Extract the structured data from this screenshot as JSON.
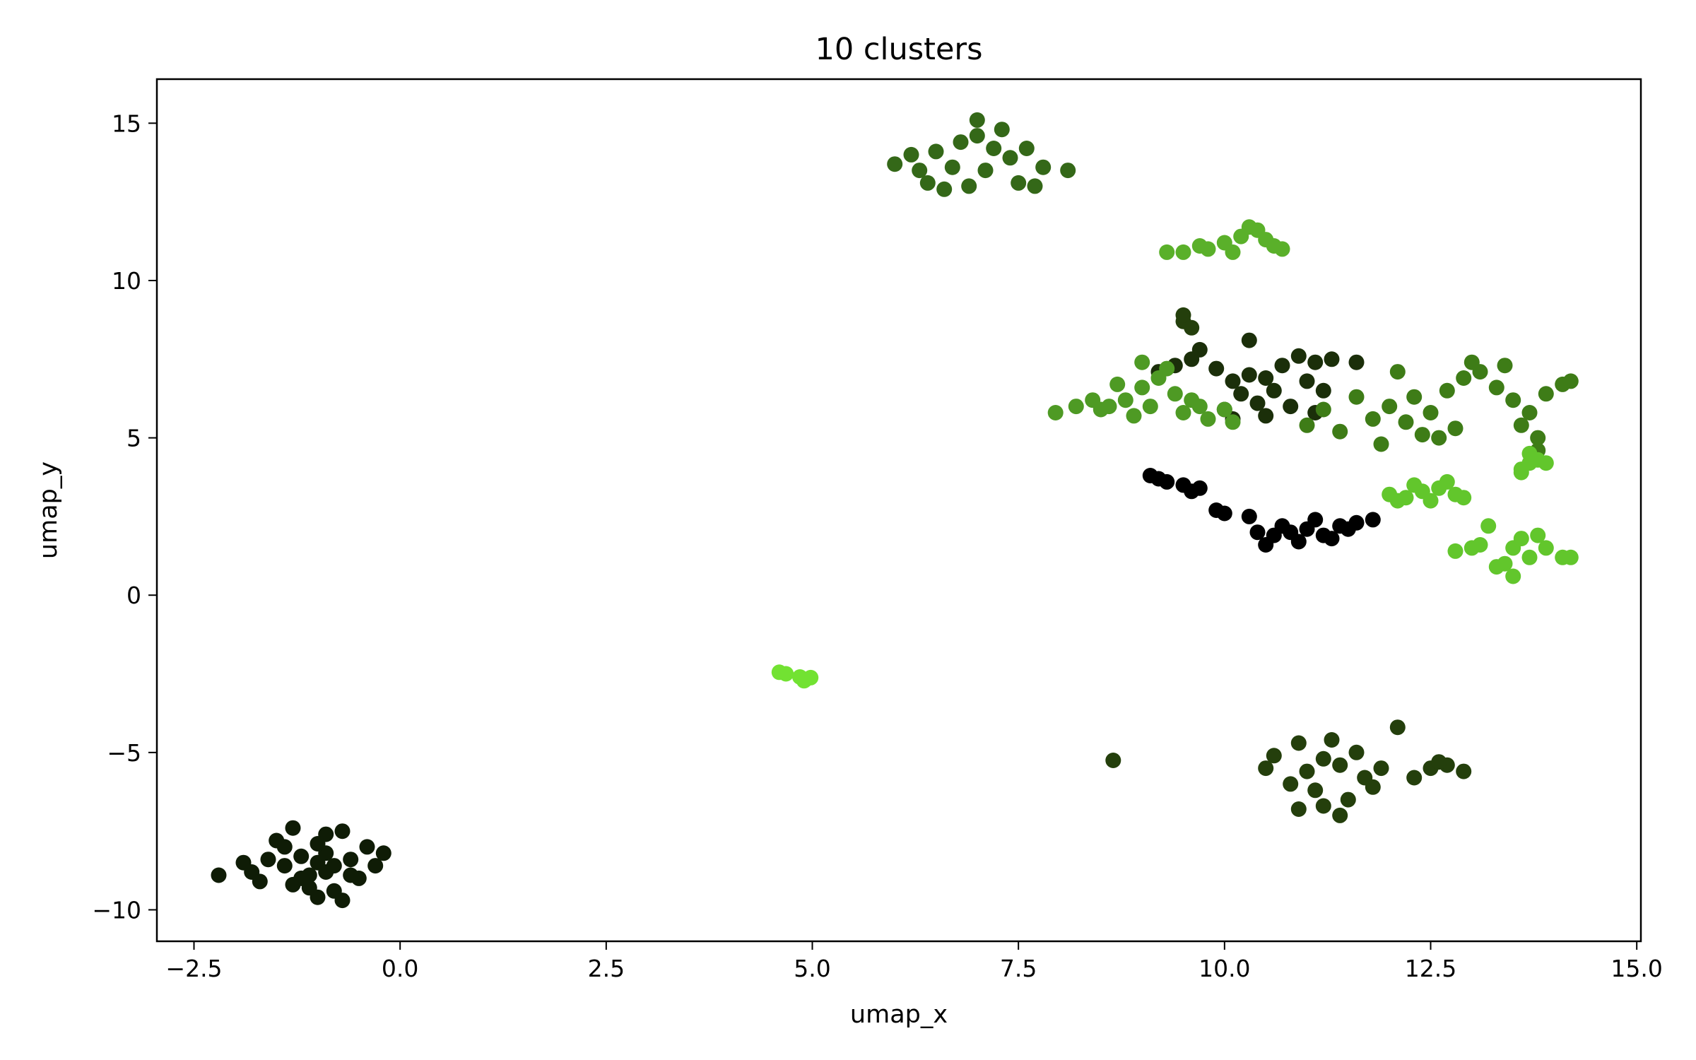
{
  "chart_data": {
    "type": "scatter",
    "title": "10 clusters",
    "xlabel": "umap_x",
    "ylabel": "umap_y",
    "xlim": [
      -2.95,
      15.05
    ],
    "ylim": [
      -11.0,
      16.4
    ],
    "xticks": [
      -2.5,
      0.0,
      2.5,
      5.0,
      7.5,
      10.0,
      12.5,
      15.0
    ],
    "xtick_labels": [
      "−2.5",
      "0.0",
      "2.5",
      "5.0",
      "7.5",
      "10.0",
      "12.5",
      "15.0"
    ],
    "yticks": [
      -10,
      -5,
      0,
      5,
      10,
      15
    ],
    "ytick_labels": [
      "−10",
      "−5",
      "0",
      "5",
      "10",
      "15"
    ],
    "grid": false,
    "legend": "none",
    "series": [
      {
        "color": "#0f1c06",
        "points": [
          [
            -1.0,
            -8.5
          ],
          [
            -1.2,
            -8.3
          ],
          [
            -0.8,
            -8.6
          ],
          [
            -1.1,
            -8.9
          ],
          [
            -0.9,
            -8.2
          ],
          [
            -1.4,
            -8.6
          ],
          [
            -0.6,
            -8.4
          ],
          [
            -1.6,
            -8.4
          ],
          [
            -0.4,
            -8.0
          ],
          [
            -2.2,
            -8.9
          ],
          [
            -1.8,
            -8.8
          ],
          [
            -1.3,
            -7.4
          ],
          [
            -0.9,
            -7.6
          ],
          [
            -0.7,
            -7.5
          ],
          [
            -0.2,
            -8.2
          ],
          [
            -1.0,
            -9.6
          ],
          [
            -0.8,
            -9.4
          ],
          [
            -1.3,
            -9.2
          ],
          [
            -0.7,
            -9.7
          ],
          [
            -1.5,
            -7.8
          ],
          [
            -0.5,
            -9.0
          ],
          [
            -1.1,
            -9.3
          ],
          [
            -0.3,
            -8.6
          ],
          [
            -1.9,
            -8.5
          ],
          [
            -1.0,
            -7.9
          ],
          [
            -1.2,
            -9.0
          ],
          [
            -0.6,
            -8.9
          ],
          [
            -1.7,
            -9.1
          ],
          [
            -0.9,
            -8.8
          ],
          [
            -1.4,
            -8.0
          ]
        ]
      },
      {
        "color": "#000000",
        "points": [
          [
            9.1,
            3.8
          ],
          [
            9.3,
            3.6
          ],
          [
            9.5,
            3.5
          ],
          [
            9.7,
            3.4
          ],
          [
            9.2,
            3.7
          ],
          [
            9.6,
            3.3
          ],
          [
            9.9,
            2.7
          ],
          [
            10.0,
            2.6
          ],
          [
            10.6,
            1.9
          ],
          [
            10.8,
            2.0
          ],
          [
            11.0,
            2.1
          ],
          [
            11.2,
            1.9
          ],
          [
            10.9,
            1.7
          ],
          [
            10.4,
            2.0
          ],
          [
            11.4,
            2.2
          ],
          [
            11.6,
            2.3
          ],
          [
            11.8,
            2.4
          ],
          [
            11.3,
            1.8
          ],
          [
            10.7,
            2.2
          ],
          [
            10.5,
            1.6
          ],
          [
            11.1,
            2.4
          ],
          [
            10.3,
            2.5
          ],
          [
            11.5,
            2.1
          ]
        ]
      },
      {
        "color": "#1b2f0a",
        "points": [
          [
            10.1,
            6.8
          ],
          [
            10.3,
            7.0
          ],
          [
            9.9,
            7.2
          ],
          [
            10.5,
            6.9
          ],
          [
            10.7,
            7.3
          ],
          [
            10.2,
            6.4
          ],
          [
            10.4,
            6.1
          ],
          [
            10.0,
            5.9
          ],
          [
            9.6,
            7.5
          ],
          [
            9.4,
            7.3
          ],
          [
            9.2,
            7.1
          ],
          [
            10.9,
            7.6
          ],
          [
            11.1,
            7.4
          ],
          [
            11.3,
            7.5
          ],
          [
            11.6,
            7.4
          ],
          [
            10.6,
            6.5
          ],
          [
            10.8,
            6.0
          ],
          [
            11.0,
            6.8
          ],
          [
            10.3,
            8.1
          ],
          [
            9.7,
            7.8
          ],
          [
            11.2,
            6.5
          ],
          [
            10.5,
            5.7
          ],
          [
            10.1,
            5.6
          ],
          [
            11.1,
            5.8
          ]
        ]
      },
      {
        "color": "#243f0c",
        "points": [
          [
            9.5,
            8.7
          ],
          [
            9.6,
            8.5
          ],
          [
            9.5,
            8.9
          ],
          [
            11.2,
            -5.2
          ],
          [
            11.4,
            -5.4
          ],
          [
            11.0,
            -5.6
          ],
          [
            11.6,
            -5.0
          ],
          [
            11.3,
            -4.6
          ],
          [
            11.1,
            -6.2
          ],
          [
            11.5,
            -6.5
          ],
          [
            10.8,
            -6.0
          ],
          [
            11.7,
            -5.8
          ],
          [
            11.9,
            -5.5
          ],
          [
            12.1,
            -4.2
          ],
          [
            10.6,
            -5.1
          ],
          [
            10.5,
            -5.5
          ],
          [
            10.9,
            -6.8
          ],
          [
            11.4,
            -7.0
          ],
          [
            11.2,
            -6.7
          ],
          [
            12.3,
            -5.8
          ],
          [
            12.5,
            -5.5
          ],
          [
            12.7,
            -5.4
          ],
          [
            12.9,
            -5.6
          ],
          [
            12.6,
            -5.3
          ],
          [
            8.65,
            -5.25
          ],
          [
            11.8,
            -6.1
          ],
          [
            10.9,
            -4.7
          ]
        ]
      },
      {
        "color": "#346818",
        "points": [
          [
            6.5,
            14.1
          ],
          [
            6.8,
            14.4
          ],
          [
            7.0,
            14.6
          ],
          [
            7.2,
            14.2
          ],
          [
            6.7,
            13.6
          ],
          [
            7.1,
            13.5
          ],
          [
            7.4,
            13.9
          ],
          [
            6.3,
            13.5
          ],
          [
            6.0,
            13.7
          ],
          [
            7.6,
            14.2
          ],
          [
            7.8,
            13.6
          ],
          [
            8.1,
            13.5
          ],
          [
            7.5,
            13.1
          ],
          [
            6.9,
            13.0
          ],
          [
            6.6,
            12.9
          ],
          [
            7.0,
            15.1
          ],
          [
            7.3,
            14.8
          ],
          [
            6.4,
            13.1
          ],
          [
            7.7,
            13.0
          ],
          [
            6.2,
            14.0
          ]
        ]
      },
      {
        "color": "#3e7c17",
        "points": [
          [
            12.0,
            6.0
          ],
          [
            12.3,
            6.3
          ],
          [
            12.5,
            5.8
          ],
          [
            12.7,
            6.5
          ],
          [
            12.2,
            5.5
          ],
          [
            11.8,
            5.6
          ],
          [
            12.9,
            6.9
          ],
          [
            13.1,
            7.1
          ],
          [
            13.3,
            6.6
          ],
          [
            13.5,
            6.2
          ],
          [
            13.7,
            5.8
          ],
          [
            13.9,
            6.4
          ],
          [
            14.1,
            6.7
          ],
          [
            14.2,
            6.8
          ],
          [
            12.4,
            5.1
          ],
          [
            12.6,
            5.0
          ],
          [
            11.4,
            5.2
          ],
          [
            11.2,
            5.9
          ],
          [
            11.0,
            5.4
          ],
          [
            11.6,
            6.3
          ],
          [
            12.1,
            7.1
          ],
          [
            13.0,
            7.4
          ],
          [
            13.6,
            5.4
          ],
          [
            13.8,
            5.0
          ],
          [
            13.8,
            4.6
          ],
          [
            12.8,
            5.3
          ],
          [
            11.9,
            4.8
          ],
          [
            13.4,
            7.3
          ]
        ]
      },
      {
        "color": "#4e9a24",
        "points": [
          [
            9.0,
            6.6
          ],
          [
            9.2,
            6.9
          ],
          [
            8.8,
            6.2
          ],
          [
            9.4,
            6.4
          ],
          [
            9.1,
            6.0
          ],
          [
            8.6,
            6.0
          ],
          [
            8.4,
            6.2
          ],
          [
            8.2,
            6.0
          ],
          [
            7.95,
            5.8
          ],
          [
            9.6,
            6.2
          ],
          [
            9.8,
            5.6
          ],
          [
            10.1,
            5.5
          ],
          [
            9.3,
            7.2
          ],
          [
            9.0,
            7.4
          ],
          [
            8.9,
            5.7
          ],
          [
            9.5,
            5.8
          ],
          [
            8.7,
            6.7
          ],
          [
            9.7,
            6.0
          ],
          [
            10.0,
            5.9
          ],
          [
            8.5,
            5.9
          ]
        ]
      },
      {
        "color": "#5ab02a",
        "points": [
          [
            10.2,
            11.4
          ],
          [
            10.4,
            11.6
          ],
          [
            10.0,
            11.2
          ],
          [
            10.6,
            11.1
          ],
          [
            10.7,
            11.0
          ],
          [
            9.8,
            11.0
          ],
          [
            9.5,
            10.9
          ],
          [
            9.3,
            10.9
          ],
          [
            10.3,
            11.7
          ],
          [
            10.1,
            10.9
          ],
          [
            10.5,
            11.3
          ],
          [
            9.7,
            11.1
          ]
        ]
      },
      {
        "color": "#62c62c",
        "points": [
          [
            12.0,
            3.2
          ],
          [
            12.2,
            3.1
          ],
          [
            12.4,
            3.3
          ],
          [
            12.6,
            3.4
          ],
          [
            12.8,
            3.2
          ],
          [
            12.3,
            3.5
          ],
          [
            12.1,
            3.0
          ],
          [
            12.9,
            3.1
          ],
          [
            12.5,
            3.0
          ],
          [
            12.7,
            3.6
          ],
          [
            13.6,
            4.0
          ],
          [
            13.7,
            4.2
          ],
          [
            13.8,
            4.3
          ],
          [
            13.9,
            4.2
          ],
          [
            13.6,
            3.9
          ],
          [
            13.7,
            4.5
          ],
          [
            13.5,
            1.5
          ],
          [
            13.7,
            1.2
          ],
          [
            13.9,
            1.5
          ],
          [
            14.1,
            1.2
          ],
          [
            13.4,
            1.0
          ],
          [
            13.6,
            1.8
          ],
          [
            13.8,
            1.9
          ],
          [
            13.2,
            2.2
          ],
          [
            13.0,
            1.5
          ],
          [
            13.1,
            1.6
          ],
          [
            12.8,
            1.4
          ],
          [
            13.5,
            0.6
          ],
          [
            13.3,
            0.9
          ],
          [
            14.2,
            1.2
          ]
        ]
      },
      {
        "color": "#72e232",
        "points": [
          [
            4.6,
            -2.45
          ],
          [
            4.68,
            -2.5
          ],
          [
            4.85,
            -2.6
          ],
          [
            4.92,
            -2.68
          ],
          [
            4.98,
            -2.62
          ],
          [
            4.9,
            -2.72
          ]
        ]
      }
    ]
  }
}
